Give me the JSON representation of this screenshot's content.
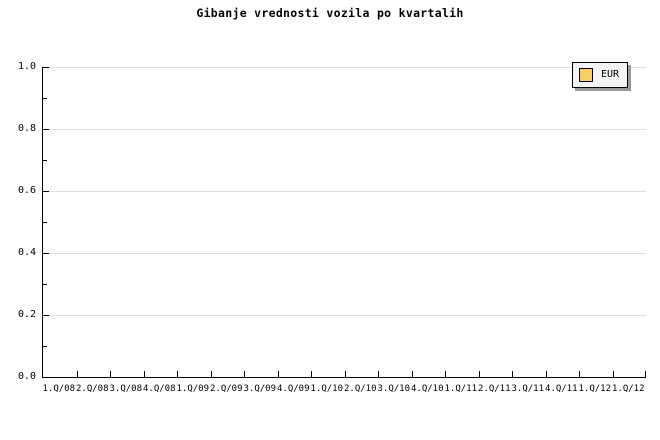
{
  "page": {
    "background": "#FFFFFF"
  },
  "chart_data": {
    "type": "line",
    "title": "Gibanje vrednosti vozila po kvartalih",
    "categories": [
      "1.Q/08",
      "2.Q/08",
      "3.Q/08",
      "4.Q/08",
      "1.Q/09",
      "2.Q/09",
      "3.Q/09",
      "4.Q/09",
      "1.Q/10",
      "2.Q/10",
      "3.Q/10",
      "4.Q/10",
      "1.Q/11",
      "2.Q/11",
      "3.Q/11",
      "4.Q/11",
      "1.Q/12",
      "1.Q/12"
    ],
    "series": [
      {
        "name": "EUR",
        "color": "#FACC66",
        "values": []
      }
    ],
    "ylim": [
      0.0,
      1.0
    ],
    "yticks": [
      0.0,
      0.2,
      0.4,
      0.6,
      0.8,
      1.0
    ],
    "y_minor_tick_step": 0.1,
    "xlabel": "",
    "ylabel": "",
    "grid": "horizontal gridlines at major y ticks only",
    "legend": {
      "position": "top-right",
      "entries": [
        "EUR"
      ]
    }
  },
  "colors": {
    "axis": "#000000",
    "text": "#000000",
    "gridline": "#DEDEDE",
    "legend_background": "#F4F4F4",
    "legend_border": "#000000",
    "legend_shadow": "#999999",
    "series_eur_swatch": "#FACC66"
  }
}
